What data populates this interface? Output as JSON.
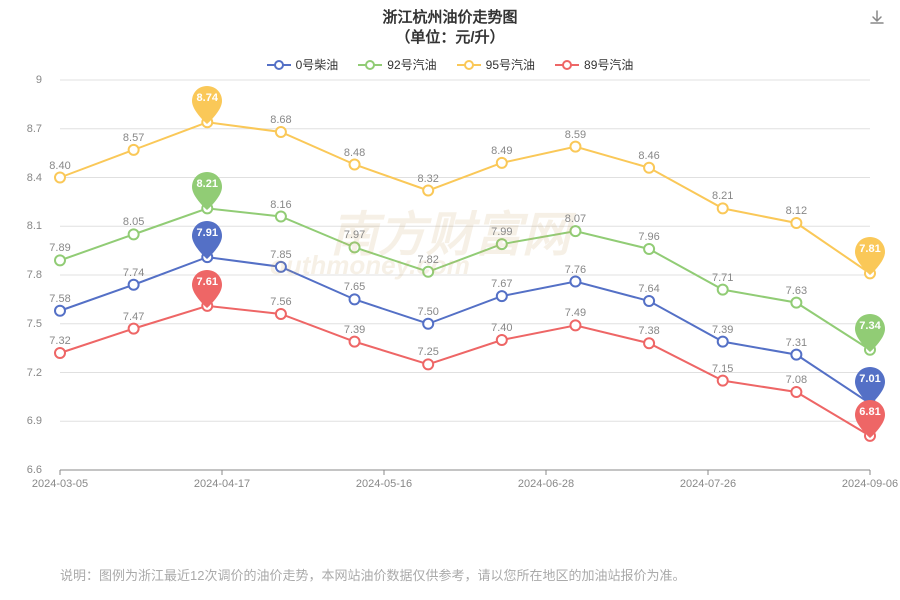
{
  "title_line1": "浙江杭州油价走势图",
  "title_line2": "（单位：元/升）",
  "title_fontsize": 15,
  "download_icon_color": "#888888",
  "watermark_text_cn": "南方财富网",
  "watermark_text_en": "outhmoney.com",
  "watermark_fontsize_cn": 48,
  "watermark_fontsize_en": 26,
  "legend": [
    {
      "name": "0号柴油",
      "color": "#5470c6"
    },
    {
      "name": "92号汽油",
      "color": "#91cc75"
    },
    {
      "name": "95号汽油",
      "color": "#fac858"
    },
    {
      "name": "89号汽油",
      "color": "#ee6666"
    }
  ],
  "chart": {
    "background_color": "#ffffff",
    "grid_color": "#e0e0e0",
    "axis_line_color": "#888888",
    "axis_label_color": "#888888",
    "axis_fontsize": 11,
    "data_label_fontsize": 11,
    "data_label_color": "#888888",
    "ylim": [
      6.6,
      9.0
    ],
    "ytick_step": 0.3,
    "yticks": [
      6.6,
      6.9,
      7.2,
      7.5,
      7.8,
      8.1,
      8.4,
      8.7,
      9.0
    ],
    "x_labels": [
      "2024-03-05",
      "2024-04-17",
      "2024-05-16",
      "2024-06-28",
      "2024-07-26",
      "2024-09-06"
    ],
    "n_points": 12,
    "line_width": 2,
    "marker_radius": 5,
    "marker_style": "hollow-circle",
    "series": {
      "diesel_0": {
        "color": "#5470c6",
        "values": [
          7.58,
          7.74,
          7.91,
          7.85,
          7.65,
          7.5,
          7.67,
          7.76,
          7.64,
          7.39,
          7.31,
          7.01
        ]
      },
      "gas_92": {
        "color": "#91cc75",
        "values": [
          7.89,
          8.05,
          8.21,
          8.16,
          7.97,
          7.82,
          7.99,
          8.07,
          7.96,
          7.71,
          7.63,
          7.34
        ]
      },
      "gas_95": {
        "color": "#fac858",
        "values": [
          8.4,
          8.57,
          8.74,
          8.68,
          8.48,
          8.32,
          8.49,
          8.59,
          8.46,
          8.21,
          8.12,
          7.81
        ]
      },
      "gas_89": {
        "color": "#ee6666",
        "values": [
          7.32,
          7.47,
          7.61,
          7.56,
          7.39,
          7.25,
          7.4,
          7.49,
          7.38,
          7.15,
          7.08,
          6.81
        ]
      }
    },
    "highlight_index": 2,
    "last_pin_index": 11,
    "pins": [
      {
        "series": "gas_95",
        "value_index": 2,
        "color": "#fac858"
      },
      {
        "series": "gas_92",
        "value_index": 2,
        "color": "#91cc75"
      },
      {
        "series": "diesel_0",
        "value_index": 2,
        "color": "#5470c6"
      },
      {
        "series": "gas_89",
        "value_index": 2,
        "color": "#ee6666"
      },
      {
        "series": "gas_95",
        "value_index": 11,
        "color": "#fac858"
      },
      {
        "series": "gas_92",
        "value_index": 11,
        "color": "#91cc75"
      },
      {
        "series": "diesel_0",
        "value_index": 11,
        "color": "#5470c6"
      },
      {
        "series": "gas_89",
        "value_index": 11,
        "color": "#ee6666"
      }
    ]
  },
  "footer_note": "说明：图例为浙江最近12次调价的油价走势，本网站油价数据仅供参考，请以您所在地区的加油站报价为准。"
}
